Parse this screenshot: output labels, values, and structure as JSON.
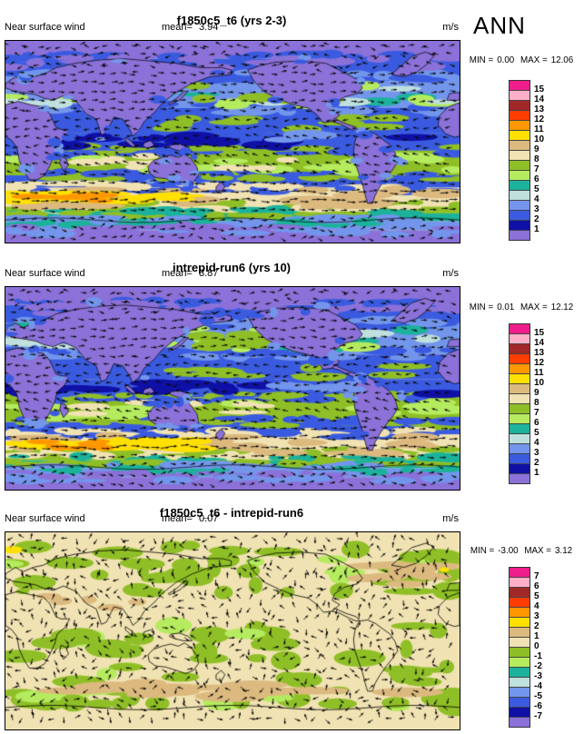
{
  "page": {
    "season_label": "ANN"
  },
  "colorbar": {
    "colors_top_to_bottom": [
      "#ef1e8c",
      "#ffb0c8",
      "#a12828",
      "#ff3d00",
      "#ff9800",
      "#ffe000",
      "#dcb97e",
      "#f0e2b2",
      "#8fbf26",
      "#b5eb5e",
      "#1cb29b",
      "#bfe0dd",
      "#7396ec",
      "#3a5be0",
      "#0f10a5",
      "#8b71d8"
    ]
  },
  "map_colors": {
    "purple": "#8b71d8",
    "navy": "#0f10a5",
    "blue": "#3a5be0",
    "cornflower": "#7396ec",
    "pale_cyan": "#bfe0dd",
    "teal": "#1cb29b",
    "light_green": "#b5eb5e",
    "olive": "#8fbf26",
    "beige": "#f0e2b2",
    "tan": "#dcb97e",
    "yellow": "#ffe000",
    "orange": "#ff9800",
    "coast": "#000000",
    "arrow": "#0a0a0a"
  },
  "panels": [
    {
      "title": "f1850c5_t6 (yrs 2-3)",
      "variable": "Near surface wind",
      "mean_label": "mean=",
      "mean": "3.94",
      "units": "m/s",
      "min_label": "MIN =",
      "min": "0.00",
      "max_label": "MAX =",
      "max": "12.06",
      "ticks": [
        "15",
        "14",
        "13",
        "12",
        "11",
        "10",
        "9",
        "8",
        "7",
        "6",
        "5",
        "4",
        "3",
        "2",
        "1"
      ],
      "map_type": "speed"
    },
    {
      "title": "intrepid-run6 (yrs 10)",
      "variable": "Near surface wind",
      "mean_label": "mean=",
      "mean": "3.87",
      "units": "m/s",
      "min_label": "MIN =",
      "min": "0.01",
      "max_label": "MAX =",
      "max": "12.12",
      "ticks": [
        "15",
        "14",
        "13",
        "12",
        "11",
        "10",
        "9",
        "8",
        "7",
        "6",
        "5",
        "4",
        "3",
        "2",
        "1"
      ],
      "map_type": "speed"
    },
    {
      "title": "f1850c5_t6 - intrepid-run6",
      "variable": "Near surface wind",
      "mean_label": "mean=",
      "mean": "0.07",
      "units": "m/s",
      "min_label": "MIN =",
      "min": "-3.00",
      "max_label": "MAX =",
      "max": "3.12",
      "ticks": [
        "7",
        "6",
        "5",
        "4",
        "3",
        "2",
        "1",
        "0",
        "-1",
        "-2",
        "-3",
        "-4",
        "-5",
        "-6",
        "-7"
      ],
      "map_type": "diff"
    }
  ],
  "chart_data": [
    {
      "type": "heatmap",
      "title": "f1850c5_t6 (yrs 2-3)",
      "variable": "Near surface wind",
      "season": "ANN",
      "units": "m/s",
      "projection": "global cylindrical lat-lon, 0E-360E, 90N-90S",
      "overlay": "wind vector arrows",
      "mean": 3.94,
      "min": 0.0,
      "max": 12.06,
      "contour_levels": [
        1,
        2,
        3,
        4,
        5,
        6,
        7,
        8,
        9,
        10,
        11,
        12,
        13,
        14,
        15
      ],
      "palette_top_to_bottom": [
        "#ef1e8c",
        "#ffb0c8",
        "#a12828",
        "#ff3d00",
        "#ff9800",
        "#ffe000",
        "#dcb97e",
        "#f0e2b2",
        "#8fbf26",
        "#b5eb5e",
        "#1cb29b",
        "#bfe0dd",
        "#7396ec",
        "#3a5be0",
        "#0f10a5",
        "#8b71d8"
      ],
      "legend_position": "right",
      "notes": "low wind (purple/blue) over continents and equator; 6-10 m/s (green/beige) trade winds; 9-13 m/s (yellow/orange) Southern Ocean storm track near 50S"
    },
    {
      "type": "heatmap",
      "title": "intrepid-run6 (yrs 10)",
      "variable": "Near surface wind",
      "season": "ANN",
      "units": "m/s",
      "projection": "global cylindrical lat-lon, 0E-360E, 90N-90S",
      "overlay": "wind vector arrows",
      "mean": 3.87,
      "min": 0.01,
      "max": 12.12,
      "contour_levels": [
        1,
        2,
        3,
        4,
        5,
        6,
        7,
        8,
        9,
        10,
        11,
        12,
        13,
        14,
        15
      ],
      "palette_top_to_bottom": [
        "#ef1e8c",
        "#ffb0c8",
        "#a12828",
        "#ff3d00",
        "#ff9800",
        "#ffe000",
        "#dcb97e",
        "#f0e2b2",
        "#8fbf26",
        "#b5eb5e",
        "#1cb29b",
        "#bfe0dd",
        "#7396ec",
        "#3a5be0",
        "#0f10a5",
        "#8b71d8"
      ],
      "legend_position": "right",
      "notes": "pattern nearly identical to panel 1"
    },
    {
      "type": "heatmap",
      "title": "f1850c5_t6 - intrepid-run6",
      "variable": "Near surface wind difference",
      "season": "ANN",
      "units": "m/s",
      "projection": "global cylindrical lat-lon, 0E-360E, 90N-90S",
      "overlay": "wind vector difference arrows",
      "mean": 0.07,
      "min": -3.0,
      "max": 3.12,
      "contour_levels": [
        -7,
        -6,
        -5,
        -4,
        -3,
        -2,
        -1,
        0,
        1,
        2,
        3,
        4,
        5,
        6,
        7
      ],
      "palette_top_to_bottom": [
        "#ef1e8c",
        "#ffb0c8",
        "#a12828",
        "#ff3d00",
        "#ff9800",
        "#ffe000",
        "#dcb97e",
        "#f0e2b2",
        "#8fbf26",
        "#b5eb5e",
        "#1cb29b",
        "#bfe0dd",
        "#7396ec",
        "#3a5be0",
        "#0f10a5",
        "#8b71d8"
      ],
      "legend_position": "right",
      "notes": "mostly 0-1 (beige) with -1-0 (green) patches; 1-2 (tan) streaks along 50S and N Atlantic; isolated 2-3 (yellow) spots"
    }
  ]
}
